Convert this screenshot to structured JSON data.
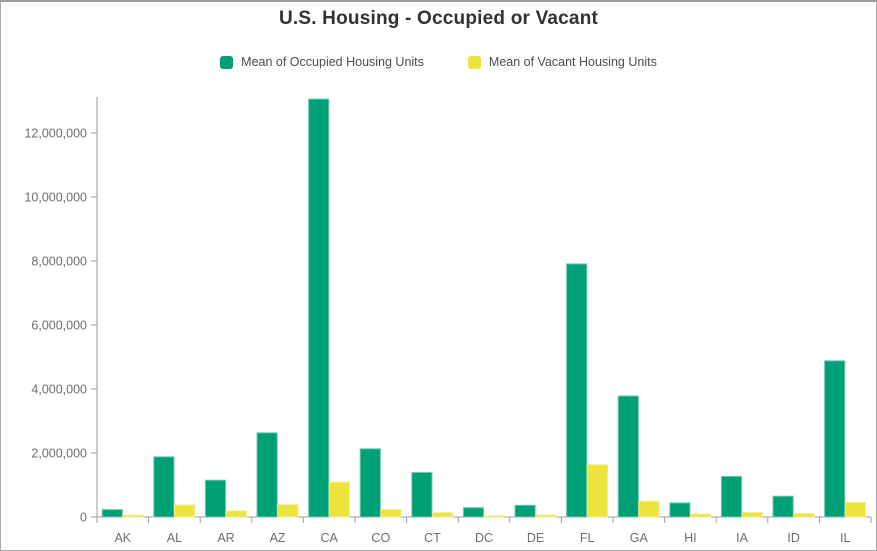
{
  "title": "U.S. Housing - Occupied or Vacant",
  "chart_data": {
    "type": "bar",
    "title": "U.S. Housing - Occupied or Vacant",
    "categories": [
      "AK",
      "AL",
      "AR",
      "AZ",
      "CA",
      "CO",
      "CT",
      "DC",
      "DE",
      "FL",
      "GA",
      "HI",
      "IA",
      "ID",
      "IL"
    ],
    "series": [
      {
        "name": "Mean of Occupied Housing Units",
        "color": "#00a076",
        "border_color": "#74c8ad",
        "values": [
          230000,
          1880000,
          1150000,
          2630000,
          13060000,
          2130000,
          1390000,
          290000,
          365000,
          7910000,
          3780000,
          440000,
          1270000,
          650000,
          4880000
        ]
      },
      {
        "name": "Mean of Vacant Housing Units",
        "color": "#ece33c",
        "border_color": "#f2ec8f",
        "values": [
          55000,
          375000,
          190000,
          385000,
          1090000,
          230000,
          135000,
          40000,
          60000,
          1630000,
          490000,
          90000,
          140000,
          105000,
          455000
        ]
      }
    ],
    "xlabel": "",
    "ylabel": "",
    "ylim": [
      0,
      13400000
    ],
    "ytick_interval": 2000000,
    "ytick_labels": [
      "0",
      "2,000,000",
      "4,000,000",
      "6,000,000",
      "8,000,000",
      "10,000,000",
      "12,000,000"
    ],
    "grid": false,
    "legend_position": "top",
    "colors": {
      "title_text": "#323232",
      "legend_text": "#4c4c4c",
      "axis_line": "#9b9b9b",
      "tick_text": "#6e6e6e",
      "background": "#ffffff"
    }
  }
}
